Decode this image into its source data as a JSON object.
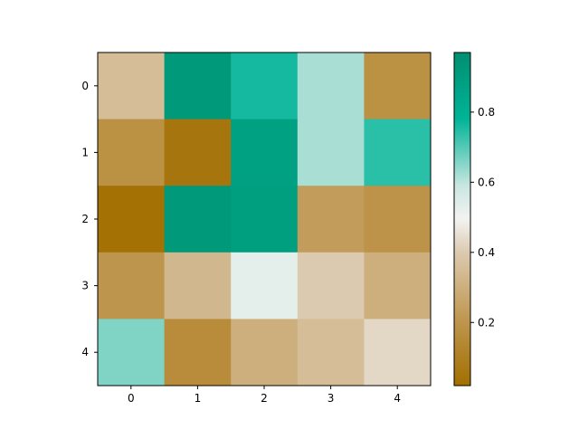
{
  "chart_data": {
    "type": "heatmap",
    "title": "",
    "xlabel": "",
    "ylabel": "",
    "x_categories": [
      "0",
      "1",
      "2",
      "3",
      "4"
    ],
    "y_categories": [
      "0",
      "1",
      "2",
      "3",
      "4"
    ],
    "values": [
      [
        0.35,
        0.92,
        0.76,
        0.62,
        0.18
      ],
      [
        0.18,
        0.05,
        0.88,
        0.62,
        0.74
      ],
      [
        0.03,
        0.92,
        0.89,
        0.23,
        0.19
      ],
      [
        0.2,
        0.33,
        0.53,
        0.4,
        0.3
      ],
      [
        0.66,
        0.16,
        0.3,
        0.35,
        0.43
      ]
    ],
    "colormap": "BrBG",
    "colorbar": {
      "range": [
        0.02,
        0.97
      ],
      "ticks": [
        0.2,
        0.4,
        0.6,
        0.8
      ],
      "tick_labels": [
        "0.2",
        "0.4",
        "0.6",
        "0.8"
      ]
    },
    "grid": false
  }
}
